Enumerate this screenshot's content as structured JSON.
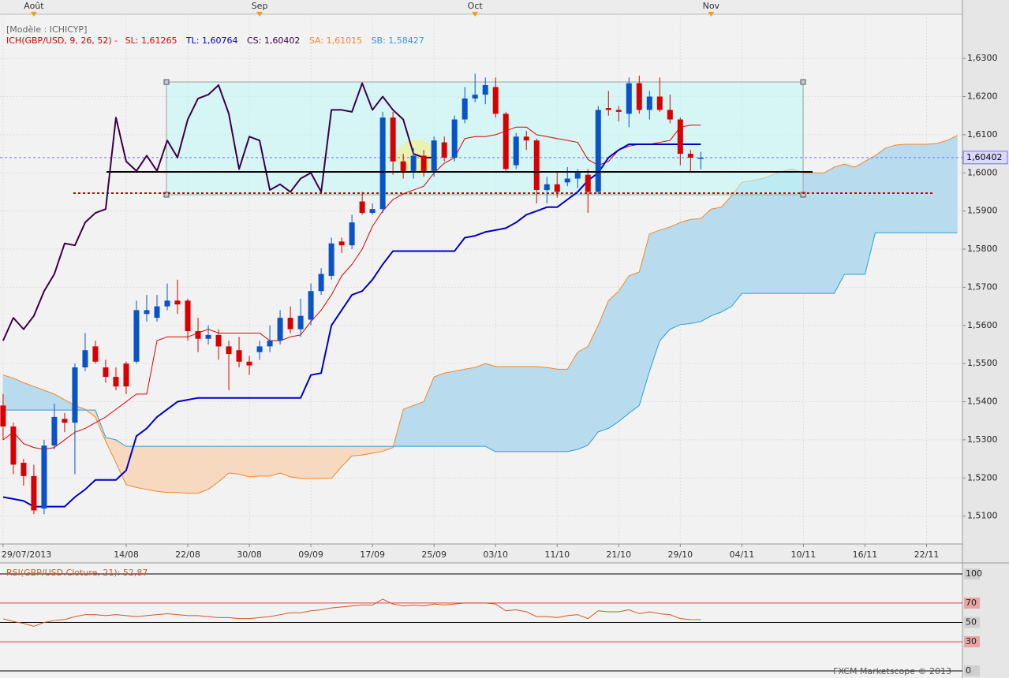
{
  "chart_data": {
    "type": "candlestick",
    "template_label": "[Modèle : ICHICYP]",
    "indicator_label": "ICH(GBP/USD, 9, 26, 52) -",
    "watermark": "FXCM Marketscope © 2013",
    "xlim": [
      -0.3,
      93.5
    ],
    "ylim": [
      1.5027,
      1.6416
    ],
    "yticks": [
      {
        "value": 1.51,
        "label": "1,5100"
      },
      {
        "value": 1.52,
        "label": "1,5200"
      },
      {
        "value": 1.53,
        "label": "1,5300"
      },
      {
        "value": 1.54,
        "label": "1,5400"
      },
      {
        "value": 1.55,
        "label": "1,5500"
      },
      {
        "value": 1.56,
        "label": "1,5600"
      },
      {
        "value": 1.57,
        "label": "1,5700"
      },
      {
        "value": 1.58,
        "label": "1,5800"
      },
      {
        "value": 1.59,
        "label": "1,5900"
      },
      {
        "value": 1.6,
        "label": "1,6000"
      },
      {
        "value": 1.61,
        "label": "1,6100"
      },
      {
        "value": 1.62,
        "label": "1,6200"
      },
      {
        "value": 1.63,
        "label": "1,6300"
      }
    ],
    "xticks": [
      {
        "value": 0,
        "label": "29/07/2013"
      },
      {
        "value": 12,
        "label": "14/08"
      },
      {
        "value": 18,
        "label": "22/08"
      },
      {
        "value": 24,
        "label": "30/08"
      },
      {
        "value": 30,
        "label": "09/09"
      },
      {
        "value": 36,
        "label": "17/09"
      },
      {
        "value": 42,
        "label": "25/09"
      },
      {
        "value": 48,
        "label": "03/10"
      },
      {
        "value": 54,
        "label": "11/10"
      },
      {
        "value": 60,
        "label": "21/10"
      },
      {
        "value": 66,
        "label": "29/10"
      },
      {
        "value": 72,
        "label": "04/11"
      },
      {
        "value": 78,
        "label": "10/11"
      },
      {
        "value": 84,
        "label": "16/11"
      },
      {
        "value": 90,
        "label": "22/11"
      }
    ],
    "month_ticks": [
      {
        "value": 3,
        "label": "Août"
      },
      {
        "value": 25,
        "label": "Sep"
      },
      {
        "value": 46,
        "label": "Oct"
      },
      {
        "value": 69,
        "label": "Nov"
      }
    ],
    "grid": true,
    "up_color": "#0a52c8",
    "down_color": "#d80000",
    "open": [
      1.539,
      1.5335,
      1.524,
      1.5205,
      1.512,
      1.5285,
      1.5355,
      1.5345,
      1.549,
      1.5545,
      1.549,
      1.5465,
      1.55,
      1.5505,
      1.563,
      1.562,
      1.565,
      1.5665,
      1.5665,
      1.5585,
      1.5565,
      1.5575,
      1.5545,
      1.5535,
      1.5505,
      1.553,
      1.5545,
      1.556,
      1.562,
      1.559,
      1.5615,
      1.569,
      1.573,
      1.582,
      1.581,
      1.5925,
      1.5895,
      1.5905,
      1.6145,
      1.603,
      1.6005,
      1.6045,
      1.6005,
      1.608,
      1.604,
      1.614,
      1.6195,
      1.6205,
      1.6225,
      1.6155,
      1.602,
      1.6095,
      1.6085,
      1.5955,
      1.597,
      1.5975,
      1.5985,
      1.5995,
      1.595,
      1.617,
      1.6165,
      1.6155,
      1.6235,
      1.6165,
      1.62,
      1.6165,
      1.614,
      1.605,
      1.6038
    ],
    "high": [
      1.542,
      1.5345,
      1.525,
      1.5235,
      1.53,
      1.5395,
      1.537,
      1.55,
      1.558,
      1.556,
      1.551,
      1.549,
      1.5505,
      1.5665,
      1.568,
      1.568,
      1.571,
      1.572,
      1.567,
      1.562,
      1.56,
      1.559,
      1.556,
      1.557,
      1.552,
      1.556,
      1.56,
      1.564,
      1.565,
      1.567,
      1.571,
      1.575,
      1.583,
      1.583,
      1.589,
      1.595,
      1.592,
      1.616,
      1.616,
      1.605,
      1.6065,
      1.606,
      1.6095,
      1.6095,
      1.615,
      1.6225,
      1.626,
      1.625,
      1.625,
      1.616,
      1.6105,
      1.611,
      1.609,
      1.599,
      1.6,
      1.6015,
      1.601,
      1.601,
      1.6175,
      1.6215,
      1.6175,
      1.625,
      1.6255,
      1.6215,
      1.625,
      1.6205,
      1.6145,
      1.606,
      1.6055
    ],
    "low": [
      1.53,
      1.521,
      1.518,
      1.5105,
      1.5105,
      1.5275,
      1.532,
      1.521,
      1.548,
      1.55,
      1.545,
      1.543,
      1.542,
      1.55,
      1.561,
      1.561,
      1.564,
      1.563,
      1.556,
      1.553,
      1.555,
      1.551,
      1.543,
      1.549,
      1.547,
      1.551,
      1.553,
      1.555,
      1.558,
      1.557,
      1.56,
      1.568,
      1.572,
      1.579,
      1.58,
      1.589,
      1.589,
      1.5895,
      1.5995,
      1.5985,
      1.5985,
      1.599,
      1.599,
      1.603,
      1.603,
      1.613,
      1.6185,
      1.618,
      1.6145,
      1.6005,
      1.601,
      1.606,
      1.592,
      1.592,
      1.5935,
      1.5965,
      1.596,
      1.5895,
      1.5945,
      1.615,
      1.6135,
      1.612,
      1.6155,
      1.614,
      1.616,
      1.613,
      1.602,
      1.6,
      1.601
    ],
    "close": [
      1.5335,
      1.5235,
      1.5205,
      1.5115,
      1.5285,
      1.536,
      1.5345,
      1.549,
      1.5535,
      1.5505,
      1.5465,
      1.544,
      1.544,
      1.564,
      1.564,
      1.565,
      1.5665,
      1.5655,
      1.5585,
      1.5565,
      1.5575,
      1.5545,
      1.5525,
      1.5505,
      1.5495,
      1.5545,
      1.556,
      1.562,
      1.559,
      1.5625,
      1.569,
      1.5735,
      1.5815,
      1.581,
      1.587,
      1.5895,
      1.5905,
      1.6145,
      1.603,
      1.6005,
      1.6045,
      1.6005,
      1.6085,
      1.604,
      1.614,
      1.6195,
      1.6205,
      1.623,
      1.6155,
      1.601,
      1.6095,
      1.6085,
      1.5955,
      1.597,
      1.595,
      1.5985,
      1.6,
      1.595,
      1.6165,
      1.6165,
      1.616,
      1.6235,
      1.6165,
      1.62,
      1.6165,
      1.614,
      1.605,
      1.604,
      1.604
    ],
    "series": [
      {
        "label": "SL: 1,61265",
        "color": "#e00000",
        "width": 1,
        "values": [
          1.53,
          1.532,
          1.529,
          1.528,
          1.5275,
          1.528,
          1.53,
          1.532,
          1.533,
          1.5345,
          1.536,
          1.538,
          1.54,
          1.542,
          1.542,
          1.556,
          1.557,
          1.557,
          1.557,
          1.558,
          1.559,
          1.558,
          1.558,
          1.558,
          1.558,
          1.558,
          1.556,
          1.556,
          1.557,
          1.5575,
          1.561,
          1.564,
          1.568,
          1.573,
          1.576,
          1.58,
          1.586,
          1.59,
          1.593,
          1.5945,
          1.5955,
          1.5965,
          1.6,
          1.6025,
          1.604,
          1.609,
          1.6095,
          1.6095,
          1.61,
          1.611,
          1.612,
          1.612,
          1.61,
          1.6095,
          1.609,
          1.6085,
          1.608,
          1.6035,
          1.602,
          1.603,
          1.606,
          1.607,
          1.6075,
          1.6075,
          1.608,
          1.6085,
          1.612,
          1.6125,
          1.6125
        ]
      },
      {
        "label": "TL: 1,60764",
        "color": "#0000c8",
        "width": 2,
        "values": [
          1.515,
          1.5145,
          1.514,
          1.5125,
          1.5125,
          1.5125,
          1.5125,
          1.515,
          1.517,
          1.5195,
          1.5195,
          1.5195,
          1.522,
          1.531,
          1.533,
          1.536,
          1.538,
          1.54,
          1.5405,
          1.541,
          1.541,
          1.541,
          1.541,
          1.541,
          1.541,
          1.541,
          1.541,
          1.541,
          1.541,
          1.541,
          1.547,
          1.5475,
          1.56,
          1.564,
          1.568,
          1.569,
          1.572,
          1.576,
          1.5795,
          1.5795,
          1.5795,
          1.5795,
          1.5795,
          1.5795,
          1.5795,
          1.583,
          1.5835,
          1.5845,
          1.585,
          1.5855,
          1.587,
          1.589,
          1.59,
          1.591,
          1.591,
          1.593,
          1.595,
          1.598,
          1.6,
          1.604,
          1.606,
          1.6075,
          1.6075,
          1.6075,
          1.6075,
          1.6075,
          1.6075,
          1.6075,
          1.6075
        ]
      },
      {
        "label": "CS: 1,60402",
        "color": "#3c0046",
        "width": 2,
        "values": [
          1.556,
          1.562,
          1.559,
          1.5625,
          1.569,
          1.5735,
          1.5815,
          1.581,
          1.587,
          1.5895,
          1.5905,
          1.6145,
          1.603,
          1.6005,
          1.6045,
          1.6005,
          1.6085,
          1.604,
          1.614,
          1.6195,
          1.6205,
          1.623,
          1.6155,
          1.601,
          1.6095,
          1.6085,
          1.5955,
          1.597,
          1.595,
          1.5985,
          1.6,
          1.595,
          1.6165,
          1.6165,
          1.616,
          1.6235,
          1.6165,
          1.62,
          1.6165,
          1.614,
          1.605,
          1.604,
          1.604
        ]
      }
    ],
    "cloud": {
      "up_fill": "#b9dbee",
      "down_fill": "#f6d9bf",
      "a": {
        "label": "SA: 1,61015",
        "color": "#f0882c",
        "values": [
          1.547,
          1.5462,
          1.545,
          1.544,
          1.543,
          1.542,
          1.5405,
          1.539,
          1.538,
          1.536,
          1.5296,
          1.524,
          1.5182,
          1.5175,
          1.517,
          1.5165,
          1.5162,
          1.5162,
          1.516,
          1.516,
          1.517,
          1.519,
          1.5213,
          1.521,
          1.5203,
          1.5205,
          1.5205,
          1.5213,
          1.5203,
          1.5199,
          1.5199,
          1.5199,
          1.5199,
          1.523,
          1.5258,
          1.526,
          1.5265,
          1.527,
          1.528,
          1.538,
          1.539,
          1.54,
          1.5465,
          1.5475,
          1.548,
          1.5485,
          1.549,
          1.55,
          1.5492,
          1.5492,
          1.5492,
          1.5492,
          1.5492,
          1.549,
          1.5485,
          1.5485,
          1.553,
          1.5545,
          1.56,
          1.5665,
          1.569,
          1.573,
          1.574,
          1.584,
          1.585,
          1.5858,
          1.587,
          1.5878,
          1.588,
          1.5905,
          1.591,
          1.594,
          1.5975,
          1.598,
          1.5985,
          1.5995,
          1.6005,
          1.601,
          1.6,
          1.6,
          1.6,
          1.6015,
          1.6023,
          1.6015,
          1.603,
          1.6045,
          1.6065,
          1.6073,
          1.6075,
          1.6075,
          1.6075,
          1.6077,
          1.6085,
          1.6098
        ]
      },
      "b": {
        "label": "SB: 1,58427",
        "color": "#2a9fd8",
        "values": [
          1.5378,
          1.5378,
          1.5378,
          1.5378,
          1.5378,
          1.5378,
          1.5378,
          1.5378,
          1.5378,
          1.5378,
          1.5306,
          1.53,
          1.5283,
          1.5283,
          1.5283,
          1.5283,
          1.5283,
          1.5283,
          1.5283,
          1.5283,
          1.5283,
          1.5283,
          1.5283,
          1.5283,
          1.5283,
          1.5283,
          1.5283,
          1.5283,
          1.5283,
          1.5283,
          1.5283,
          1.5283,
          1.5283,
          1.5283,
          1.5283,
          1.5283,
          1.5283,
          1.5283,
          1.5283,
          1.5283,
          1.5283,
          1.5283,
          1.5283,
          1.5283,
          1.5283,
          1.5283,
          1.5283,
          1.5283,
          1.5269,
          1.5269,
          1.5269,
          1.5269,
          1.5269,
          1.5269,
          1.5269,
          1.5269,
          1.5275,
          1.5286,
          1.5321,
          1.533,
          1.5348,
          1.537,
          1.539,
          1.548,
          1.556,
          1.559,
          1.5602,
          1.5605,
          1.561,
          1.5625,
          1.5635,
          1.565,
          1.5684,
          1.5684,
          1.5684,
          1.5684,
          1.5684,
          1.5684,
          1.5684,
          1.5684,
          1.5684,
          1.5684,
          1.5734,
          1.5734,
          1.5734,
          1.5843,
          1.5843,
          1.5843,
          1.5843,
          1.5843,
          1.5843,
          1.5843,
          1.5843,
          1.5843
        ]
      }
    },
    "last_price": {
      "value": 1.60402,
      "label": "1,60402",
      "color": "#7070ff"
    },
    "rsi": {
      "label": "RSI(GBP/USD.Cloture, 21): 52,87",
      "color": "#d05a20",
      "ylim": [
        -5.7,
        109.8
      ],
      "yticks": [
        100,
        70,
        50,
        30,
        0
      ],
      "tick_colors": [
        "#000000",
        "#e04040",
        "#000000",
        "#e04040",
        "#000000"
      ],
      "values": [
        53.7,
        51,
        49,
        46,
        50,
        52,
        53,
        56,
        58,
        58,
        57,
        58,
        57,
        56,
        57,
        58,
        59,
        58,
        57,
        57,
        56,
        55,
        55,
        54,
        54,
        55,
        56,
        58,
        60,
        60,
        62,
        63,
        65,
        66,
        67,
        68,
        68,
        74,
        69,
        67,
        68,
        67,
        69,
        68,
        69,
        70,
        70,
        70,
        69,
        62,
        63,
        61,
        56,
        56,
        55,
        57,
        58,
        54,
        62,
        61,
        61,
        63,
        59,
        61,
        59,
        58,
        54,
        53,
        52.87
      ]
    }
  }
}
